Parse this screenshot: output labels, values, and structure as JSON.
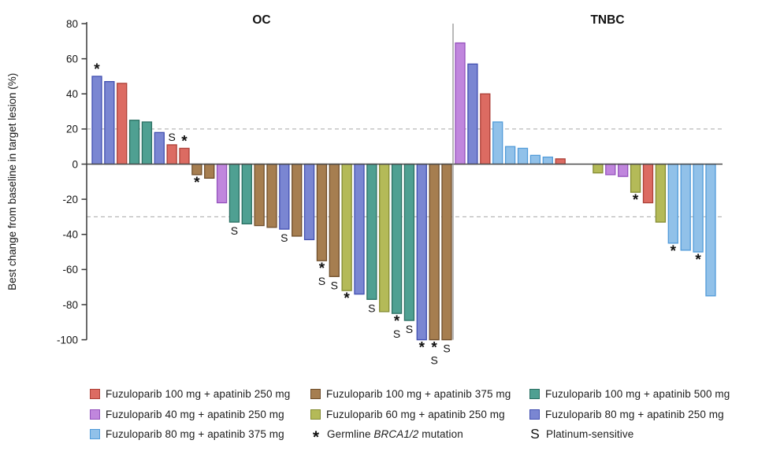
{
  "chart_data": {
    "type": "bar",
    "title": "",
    "ylabel": "Best change from baseline in target lesion (%)",
    "ylim": [
      -100,
      80
    ],
    "yticks": [
      80,
      60,
      40,
      20,
      0,
      -20,
      -40,
      -60,
      -80,
      -100
    ],
    "reference_lines": [
      20,
      -30
    ],
    "grid": "off",
    "legend_position": "bottom",
    "dose_groups": {
      "f100a250": {
        "label": "Fuzuloparib 100 mg + apatinib 250 mg",
        "fill": "#DC6B62",
        "stroke": "#AC4038"
      },
      "f100a375": {
        "label": "Fuzuloparib 100 mg + apatinib 375 mg",
        "fill": "#A67E50",
        "stroke": "#6F4E2B"
      },
      "f100a500": {
        "label": "Fuzuloparib 100 mg + apatinib 500 mg",
        "fill": "#4FA092",
        "stroke": "#2A6F62"
      },
      "f40a250": {
        "label": "Fuzuloparib 40 mg + apatinib 250 mg",
        "fill": "#C086DD",
        "stroke": "#9452BC"
      },
      "f60a250": {
        "label": "Fuzuloparib 60 mg + apatinib 250 mg",
        "fill": "#B4BA58",
        "stroke": "#848C32"
      },
      "f80a250": {
        "label": "Fuzuloparib 80 mg + apatinib 250 mg",
        "fill": "#7A86D2",
        "stroke": "#414FB0"
      },
      "f80a375": {
        "label": "Fuzuloparib 80 mg + apatinib 375 mg",
        "fill": "#91C1E9",
        "stroke": "#519BD9"
      }
    },
    "markers": {
      "brca": {
        "symbol": "*",
        "label_prefix": "Germline ",
        "label_gene": "BRCA1/2",
        "label_suffix": " mutation"
      },
      "platinum": {
        "symbol": "S",
        "label": "Platinum-sensitive"
      }
    },
    "panels": [
      {
        "title": "OC",
        "bars": [
          {
            "value": 50,
            "group": "f80a250",
            "marks": [
              "brca"
            ]
          },
          {
            "value": 47,
            "group": "f80a250",
            "marks": []
          },
          {
            "value": 46,
            "group": "f100a250",
            "marks": []
          },
          {
            "value": 25,
            "group": "f100a500",
            "marks": []
          },
          {
            "value": 24,
            "group": "f100a500",
            "marks": []
          },
          {
            "value": 18,
            "group": "f80a250",
            "marks": []
          },
          {
            "value": 11,
            "group": "f100a250",
            "marks": [
              "platinum"
            ]
          },
          {
            "value": 9,
            "group": "f100a250",
            "marks": [
              "brca"
            ]
          },
          {
            "value": -6,
            "group": "f100a375",
            "marks": [
              "brca"
            ]
          },
          {
            "value": -8,
            "group": "f100a375",
            "marks": []
          },
          {
            "value": -22,
            "group": "f40a250",
            "marks": []
          },
          {
            "value": -33,
            "group": "f100a500",
            "marks": [
              "platinum"
            ]
          },
          {
            "value": -34,
            "group": "f100a500",
            "marks": []
          },
          {
            "value": -35,
            "group": "f100a375",
            "marks": []
          },
          {
            "value": -36,
            "group": "f100a375",
            "marks": []
          },
          {
            "value": -37,
            "group": "f80a250",
            "marks": [
              "platinum"
            ]
          },
          {
            "value": -41,
            "group": "f100a375",
            "marks": []
          },
          {
            "value": -43,
            "group": "f80a250",
            "marks": []
          },
          {
            "value": -55,
            "group": "f100a375",
            "marks": [
              "brca",
              "platinum"
            ]
          },
          {
            "value": -64,
            "group": "f100a375",
            "marks": [
              "platinum"
            ]
          },
          {
            "value": -72,
            "group": "f60a250",
            "marks": [
              "brca"
            ]
          },
          {
            "value": -74,
            "group": "f80a250",
            "marks": []
          },
          {
            "value": -77,
            "group": "f100a500",
            "marks": [
              "platinum"
            ]
          },
          {
            "value": -84,
            "group": "f60a250",
            "marks": []
          },
          {
            "value": -85,
            "group": "f100a500",
            "marks": [
              "brca",
              "platinum"
            ]
          },
          {
            "value": -89,
            "group": "f100a500",
            "marks": [
              "platinum"
            ]
          },
          {
            "value": -100,
            "group": "f80a250",
            "marks": [
              "brca"
            ]
          },
          {
            "value": -100,
            "group": "f100a375",
            "marks": [
              "brca",
              "platinum"
            ]
          },
          {
            "value": -100,
            "group": "f100a375",
            "marks": [
              "platinum"
            ]
          }
        ]
      },
      {
        "title": "TNBC",
        "bars": [
          {
            "value": 69,
            "group": "f40a250",
            "marks": []
          },
          {
            "value": 57,
            "group": "f80a250",
            "marks": []
          },
          {
            "value": 40,
            "group": "f100a250",
            "marks": []
          },
          {
            "value": 24,
            "group": "f80a375",
            "marks": []
          },
          {
            "value": 10,
            "group": "f80a375",
            "marks": []
          },
          {
            "value": 9,
            "group": "f80a375",
            "marks": []
          },
          {
            "value": 5,
            "group": "f80a375",
            "marks": []
          },
          {
            "value": 4,
            "group": "f80a375",
            "marks": []
          },
          {
            "value": 3,
            "group": "f100a250",
            "marks": []
          },
          {
            "value": 0,
            "group": null,
            "marks": []
          },
          {
            "value": 0,
            "group": null,
            "marks": []
          },
          {
            "value": -5,
            "group": "f60a250",
            "marks": []
          },
          {
            "value": -6,
            "group": "f40a250",
            "marks": []
          },
          {
            "value": -7,
            "group": "f40a250",
            "marks": []
          },
          {
            "value": -16,
            "group": "f60a250",
            "marks": [
              "brca"
            ]
          },
          {
            "value": -22,
            "group": "f100a250",
            "marks": []
          },
          {
            "value": -33,
            "group": "f60a250",
            "marks": []
          },
          {
            "value": -45,
            "group": "f80a375",
            "marks": [
              "brca"
            ]
          },
          {
            "value": -49,
            "group": "f80a375",
            "marks": []
          },
          {
            "value": -50,
            "group": "f80a375",
            "marks": [
              "brca"
            ]
          },
          {
            "value": -75,
            "group": "f80a375",
            "marks": []
          }
        ]
      }
    ]
  }
}
